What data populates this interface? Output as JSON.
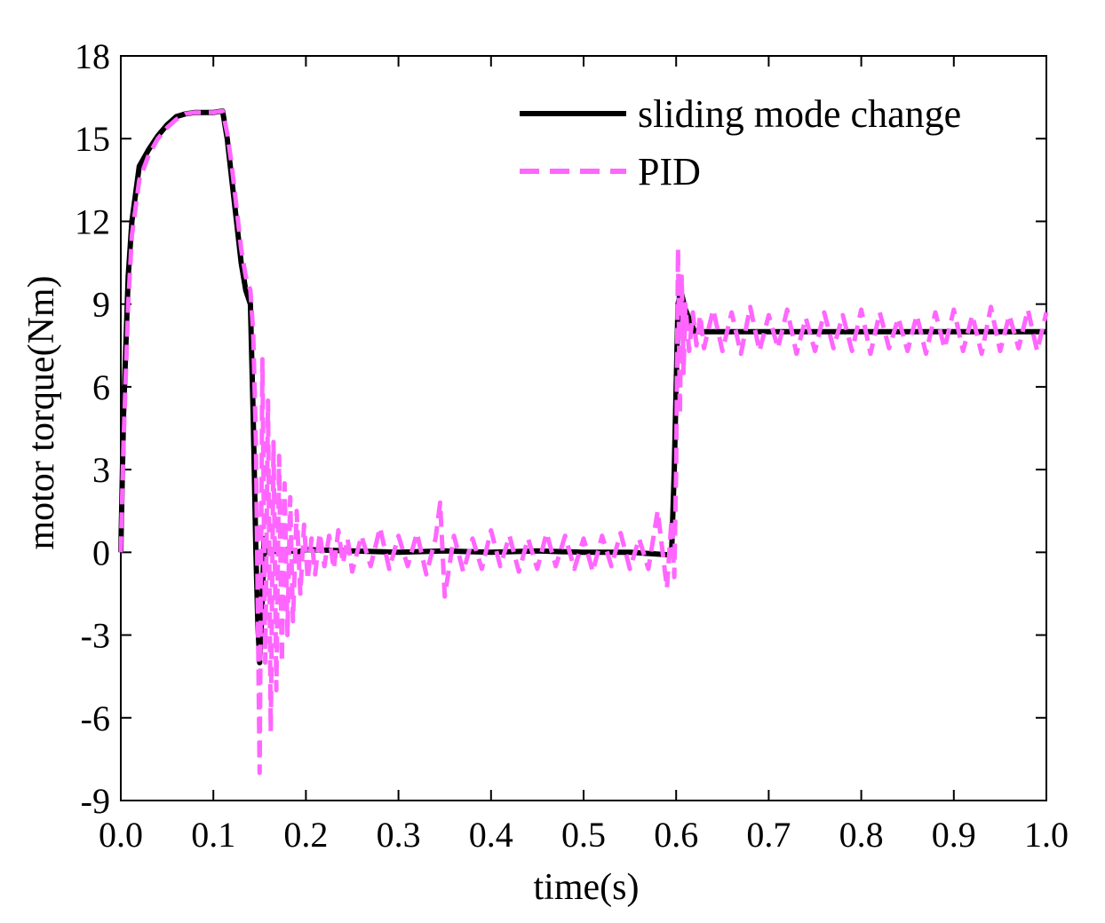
{
  "chart_data": {
    "type": "line",
    "title": "",
    "xlabel": "time(s)",
    "ylabel": "motor torque(Nm)",
    "xlim": [
      0.0,
      1.0
    ],
    "ylim": [
      -9,
      18
    ],
    "xticks": [
      "0.0",
      "0.1",
      "0.2",
      "0.3",
      "0.4",
      "0.5",
      "0.6",
      "0.7",
      "0.8",
      "0.9",
      "1.0"
    ],
    "yticks": [
      "18",
      "15",
      "12",
      "9",
      "6",
      "3",
      "0",
      "-3",
      "-6",
      "-9"
    ],
    "xtick_values": [
      0.0,
      0.1,
      0.2,
      0.3,
      0.4,
      0.5,
      0.6,
      0.7,
      0.8,
      0.9,
      1.0
    ],
    "ytick_values": [
      18,
      15,
      12,
      9,
      6,
      3,
      0,
      -3,
      -6,
      -9
    ],
    "legend_position": "top-right",
    "series": [
      {
        "name": "sliding mode change",
        "color": "#000000",
        "style": "solid",
        "x": [
          0.0,
          0.003,
          0.008,
          0.012,
          0.02,
          0.03,
          0.04,
          0.05,
          0.06,
          0.07,
          0.08,
          0.09,
          0.1,
          0.11,
          0.115,
          0.12,
          0.125,
          0.13,
          0.135,
          0.14,
          0.143,
          0.146,
          0.148,
          0.15,
          0.152,
          0.155,
          0.158,
          0.162,
          0.17,
          0.18,
          0.19,
          0.2,
          0.25,
          0.3,
          0.35,
          0.4,
          0.45,
          0.5,
          0.55,
          0.595,
          0.598,
          0.6,
          0.602,
          0.605,
          0.61,
          0.615,
          0.62,
          0.65,
          0.7,
          0.75,
          0.8,
          0.85,
          0.9,
          0.95,
          1.0
        ],
        "y": [
          0.0,
          5.0,
          10.0,
          12.0,
          14.0,
          14.6,
          15.1,
          15.5,
          15.8,
          15.9,
          15.95,
          15.95,
          15.95,
          16.0,
          15.0,
          13.5,
          12.0,
          10.5,
          9.5,
          9.0,
          5.0,
          0.0,
          -2.5,
          -4.0,
          -2.5,
          0.5,
          0.0,
          0.1,
          0.0,
          0.1,
          0.0,
          0.1,
          0.05,
          0.0,
          0.05,
          0.0,
          0.05,
          0.0,
          0.0,
          -0.1,
          3.0,
          6.0,
          9.0,
          9.5,
          8.8,
          8.4,
          8.0,
          8.0,
          8.0,
          8.0,
          8.0,
          8.0,
          8.0,
          8.0,
          8.0
        ]
      },
      {
        "name": "PID",
        "color": "#ff66ff",
        "style": "dashed",
        "x": [
          0.0,
          0.003,
          0.008,
          0.012,
          0.02,
          0.03,
          0.04,
          0.05,
          0.06,
          0.07,
          0.08,
          0.09,
          0.1,
          0.11,
          0.115,
          0.12,
          0.125,
          0.13,
          0.135,
          0.14,
          0.143,
          0.146,
          0.148,
          0.15,
          0.153,
          0.156,
          0.159,
          0.162,
          0.165,
          0.168,
          0.171,
          0.174,
          0.177,
          0.18,
          0.183,
          0.186,
          0.19,
          0.194,
          0.198,
          0.202,
          0.206,
          0.21,
          0.215,
          0.22,
          0.225,
          0.23,
          0.235,
          0.24,
          0.245,
          0.25,
          0.26,
          0.27,
          0.28,
          0.29,
          0.3,
          0.31,
          0.32,
          0.33,
          0.34,
          0.345,
          0.35,
          0.36,
          0.37,
          0.38,
          0.39,
          0.4,
          0.41,
          0.42,
          0.43,
          0.44,
          0.45,
          0.46,
          0.47,
          0.48,
          0.49,
          0.5,
          0.51,
          0.52,
          0.53,
          0.54,
          0.55,
          0.56,
          0.57,
          0.58,
          0.59,
          0.595,
          0.598,
          0.6,
          0.602,
          0.604,
          0.606,
          0.608,
          0.61,
          0.614,
          0.618,
          0.622,
          0.626,
          0.63,
          0.64,
          0.65,
          0.66,
          0.67,
          0.68,
          0.69,
          0.7,
          0.71,
          0.72,
          0.73,
          0.74,
          0.75,
          0.76,
          0.77,
          0.78,
          0.79,
          0.8,
          0.81,
          0.82,
          0.83,
          0.84,
          0.85,
          0.86,
          0.87,
          0.88,
          0.89,
          0.9,
          0.91,
          0.92,
          0.93,
          0.94,
          0.95,
          0.96,
          0.97,
          0.98,
          0.99,
          1.0
        ],
        "y": [
          0.0,
          4.0,
          9.0,
          11.5,
          13.5,
          14.4,
          15.0,
          15.4,
          15.7,
          15.9,
          15.95,
          15.95,
          15.95,
          16.0,
          15.2,
          14.0,
          12.5,
          11.0,
          10.0,
          9.5,
          8.0,
          4.0,
          -2.0,
          -8.0,
          7.0,
          -4.0,
          5.5,
          -6.5,
          4.0,
          -5.0,
          3.5,
          -4.0,
          2.5,
          -3.0,
          2.0,
          -2.5,
          1.5,
          -1.5,
          1.0,
          -1.0,
          0.5,
          -0.8,
          0.7,
          -0.5,
          0.6,
          -0.6,
          0.8,
          -0.4,
          0.5,
          -0.7,
          0.6,
          -0.5,
          0.9,
          -0.6,
          0.6,
          -0.5,
          0.7,
          -0.8,
          0.5,
          1.8,
          -1.6,
          0.6,
          -0.7,
          0.5,
          -0.6,
          0.8,
          -0.5,
          0.6,
          -0.7,
          0.5,
          -0.6,
          0.7,
          -0.5,
          0.6,
          -0.6,
          0.5,
          -0.7,
          0.6,
          -0.5,
          0.7,
          -0.6,
          0.5,
          -0.6,
          1.5,
          -1.3,
          1.2,
          -0.9,
          3.0,
          11.0,
          5.0,
          10.0,
          6.5,
          9.0,
          7.3,
          8.7,
          7.5,
          8.6,
          7.4,
          8.8,
          7.3,
          8.7,
          7.2,
          8.9,
          7.3,
          8.6,
          7.4,
          8.8,
          7.2,
          8.5,
          7.3,
          8.7,
          7.4,
          8.6,
          7.3,
          8.8,
          7.2,
          8.7,
          7.4,
          8.5,
          7.3,
          8.6,
          7.2,
          8.7,
          7.4,
          8.8,
          7.3,
          8.6,
          7.2,
          8.9,
          7.3,
          8.6,
          7.4,
          8.8,
          7.3,
          8.7
        ]
      }
    ]
  }
}
